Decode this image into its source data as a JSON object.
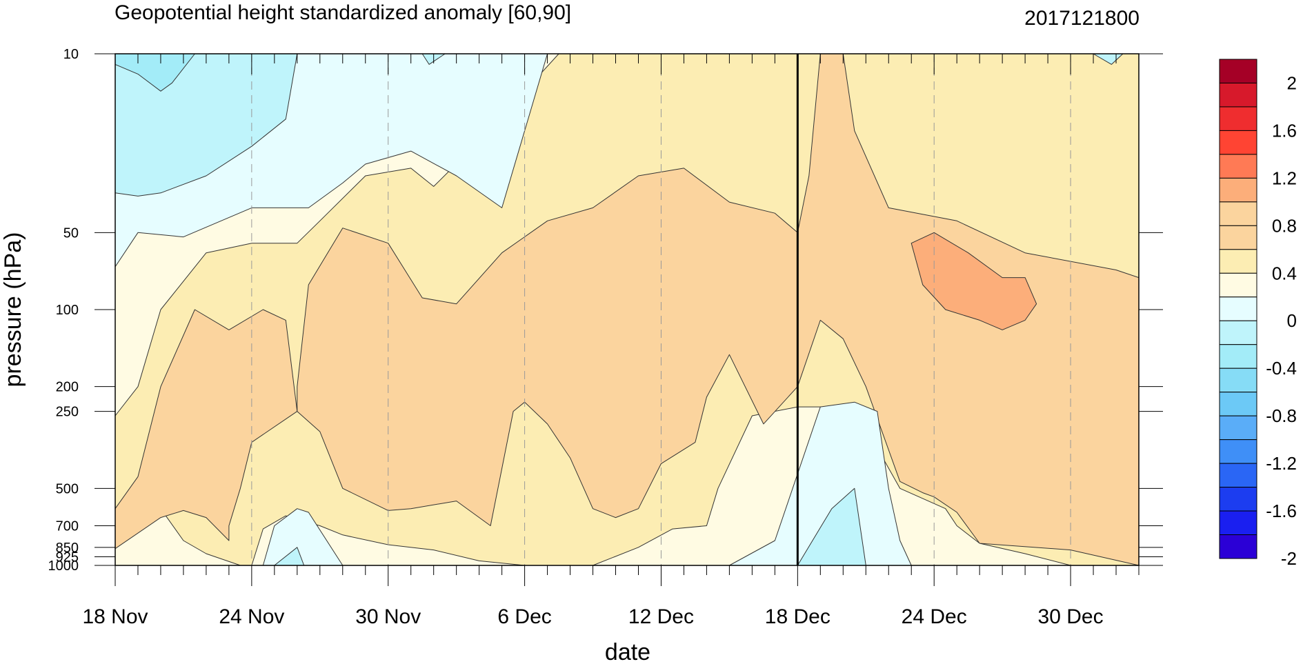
{
  "chart_data": {
    "type": "contour",
    "title": "Geopotential height standardized anomaly [60,90]",
    "date_label": "2017121800",
    "xlabel": "date",
    "ylabel": "pressure (hPa)",
    "x_ticks": [
      {
        "label": "18 Nov",
        "day": 0
      },
      {
        "label": "24 Nov",
        "day": 6
      },
      {
        "label": "30 Nov",
        "day": 12
      },
      {
        "label": "6 Dec",
        "day": 18
      },
      {
        "label": "12 Dec",
        "day": 24
      },
      {
        "label": "18 Dec",
        "day": 30
      },
      {
        "label": "24 Dec",
        "day": 36
      },
      {
        "label": "30 Dec",
        "day": 42
      }
    ],
    "x_range_days": [
      0,
      45
    ],
    "current_day": 30,
    "y_scale": "log",
    "y_range_hpa": [
      1000,
      10
    ],
    "y_ticks": [
      {
        "label": "10",
        "value": 10
      },
      {
        "label": "50",
        "value": 50
      },
      {
        "label": "100",
        "value": 100
      },
      {
        "label": "200",
        "value": 200
      },
      {
        "label": "250",
        "value": 250
      },
      {
        "label": "500",
        "value": 500
      },
      {
        "label": "700",
        "value": 700
      },
      {
        "label": "850",
        "value": 850
      },
      {
        "label": "925",
        "value": 925
      },
      {
        "label": "1000",
        "value": 1000
      }
    ],
    "colorbar": {
      "levels": [
        "2",
        "1.6",
        "1.2",
        "0.8",
        "0.4",
        "0",
        "-0.4",
        "-0.8",
        "-1.2",
        "-1.6",
        "-2"
      ],
      "colors": [
        "#a50026",
        "#d7192b",
        "#ef2d2f",
        "#ff4433",
        "#ff7a55",
        "#fcae7a",
        "#fbd49e",
        "#fbd49e",
        "#fcedb3",
        "#fffbe3",
        "#e6fdff",
        "#bff4fb",
        "#a3ecf8",
        "#86dcf6",
        "#6cc9f6",
        "#5aadf8",
        "#3f8ff7",
        "#2a66f5",
        "#1c3df0",
        "#1a1ff0",
        "#2b00d6"
      ]
    },
    "regions": [
      {
        "value": 0.0,
        "color": "#fffbe3",
        "points": [
          [
            0,
            10
          ],
          [
            45,
            10
          ],
          [
            45,
            1000
          ],
          [
            0,
            1000
          ]
        ]
      },
      {
        "value": 0.2,
        "color": "#fcedb3",
        "points": [
          [
            0,
            260
          ],
          [
            1,
            200
          ],
          [
            2,
            100
          ],
          [
            4,
            60
          ],
          [
            6,
            55
          ],
          [
            8,
            55
          ],
          [
            9,
            45
          ],
          [
            11,
            30
          ],
          [
            13,
            28
          ],
          [
            14,
            33
          ],
          [
            16,
            22
          ],
          [
            18,
            14
          ],
          [
            19.5,
            10
          ],
          [
            45,
            10
          ],
          [
            45,
            1000
          ],
          [
            43,
            1000
          ],
          [
            42,
            1000
          ],
          [
            40,
            900
          ],
          [
            38,
            820
          ],
          [
            37,
            700
          ],
          [
            36.5,
            600
          ],
          [
            34.5,
            500
          ],
          [
            33,
            290
          ],
          [
            31,
            240
          ],
          [
            30,
            240
          ],
          [
            28,
            260
          ],
          [
            26.5,
            500
          ],
          [
            26,
            700
          ],
          [
            24.5,
            720
          ],
          [
            23,
            850
          ],
          [
            21,
            1000
          ],
          [
            18,
            1000
          ],
          [
            16,
            960
          ],
          [
            14,
            870
          ],
          [
            12,
            830
          ],
          [
            10,
            760
          ],
          [
            9,
            700
          ],
          [
            7.5,
            640
          ],
          [
            6.5,
            720
          ],
          [
            6,
            1000
          ],
          [
            5.5,
            1000
          ],
          [
            4,
            900
          ],
          [
            3,
            800
          ],
          [
            2,
            600
          ],
          [
            1,
            590
          ],
          [
            0,
            600
          ]
        ]
      },
      {
        "value": 0.6,
        "color": "#fbd49e",
        "points": [
          [
            0,
            860
          ],
          [
            2,
            650
          ],
          [
            3,
            610
          ],
          [
            4,
            650
          ],
          [
            5,
            800
          ],
          [
            5,
            700
          ],
          [
            5.5,
            500
          ],
          [
            6,
            330
          ],
          [
            8,
            250
          ],
          [
            7.5,
            110
          ],
          [
            6.5,
            100
          ],
          [
            5,
            120
          ],
          [
            3.5,
            100
          ],
          [
            2,
            200
          ],
          [
            1,
            450
          ],
          [
            0,
            600
          ]
        ]
      },
      {
        "value": 0.6,
        "color": "#fbd49e",
        "points": [
          [
            8,
            200
          ],
          [
            8.5,
            80
          ],
          [
            10,
            48
          ],
          [
            12,
            55
          ],
          [
            13.5,
            90
          ],
          [
            15,
            95
          ],
          [
            17,
            60
          ],
          [
            19,
            45
          ],
          [
            21,
            40
          ],
          [
            23,
            30
          ],
          [
            25,
            28
          ],
          [
            27,
            38
          ],
          [
            29,
            42
          ],
          [
            30,
            50
          ],
          [
            30.5,
            30
          ],
          [
            31,
            10
          ],
          [
            32,
            10
          ],
          [
            32.5,
            20
          ],
          [
            34,
            40
          ],
          [
            37,
            45
          ],
          [
            40,
            60
          ],
          [
            44,
            70
          ],
          [
            45,
            75
          ],
          [
            45,
            1000
          ],
          [
            42,
            870
          ],
          [
            38,
            820
          ],
          [
            37,
            620
          ],
          [
            36,
            540
          ],
          [
            35.5,
            520
          ],
          [
            34.5,
            470
          ],
          [
            33,
            200
          ],
          [
            32,
            130
          ],
          [
            31,
            110
          ],
          [
            30,
            200
          ],
          [
            28.5,
            280
          ],
          [
            27,
            150
          ],
          [
            26,
            220
          ],
          [
            25.5,
            330
          ],
          [
            24,
            400
          ],
          [
            23,
            600
          ],
          [
            22,
            650
          ],
          [
            21,
            600
          ],
          [
            20,
            380
          ],
          [
            19,
            280
          ],
          [
            18,
            230
          ],
          [
            17.5,
            250
          ],
          [
            16.5,
            700
          ],
          [
            15,
            560
          ],
          [
            13,
            600
          ],
          [
            12,
            610
          ],
          [
            10,
            500
          ],
          [
            9,
            300
          ],
          [
            8,
            250
          ]
        ]
      },
      {
        "value": 1.0,
        "color": "#fcae7a",
        "points": [
          [
            35,
            55
          ],
          [
            36,
            50
          ],
          [
            37.5,
            60
          ],
          [
            39,
            75
          ],
          [
            40,
            75
          ],
          [
            40.5,
            95
          ],
          [
            40,
            110
          ],
          [
            39,
            120
          ],
          [
            38,
            110
          ],
          [
            36.5,
            100
          ],
          [
            35.5,
            80
          ]
        ]
      },
      {
        "value": -0.2,
        "color": "#e6fdff",
        "points": [
          [
            0,
            10
          ],
          [
            19,
            10
          ],
          [
            17,
            40
          ],
          [
            15,
            30
          ],
          [
            13,
            24
          ],
          [
            11,
            27
          ],
          [
            10,
            32
          ],
          [
            8.5,
            40
          ],
          [
            7,
            40
          ],
          [
            6,
            40
          ],
          [
            3,
            52
          ],
          [
            1,
            50
          ],
          [
            0,
            68
          ]
        ]
      },
      {
        "value": -0.2,
        "color": "#e6fdff",
        "points": [
          [
            6.5,
            1000
          ],
          [
            7,
            700
          ],
          [
            8,
            600
          ],
          [
            8.5,
            620
          ],
          [
            10,
            1000
          ]
        ]
      },
      {
        "value": -0.2,
        "color": "#e6fdff",
        "points": [
          [
            27,
            1000
          ],
          [
            29,
            800
          ],
          [
            31,
            240
          ],
          [
            32.5,
            230
          ],
          [
            33.5,
            250
          ],
          [
            34,
            500
          ],
          [
            34.5,
            800
          ],
          [
            35,
            1000
          ]
        ]
      },
      {
        "value": -0.6,
        "color": "#bff4fb",
        "points": [
          [
            0,
            10
          ],
          [
            8,
            10
          ],
          [
            7.5,
            18
          ],
          [
            6,
            23
          ],
          [
            4,
            30
          ],
          [
            2,
            35
          ],
          [
            1,
            36
          ],
          [
            0,
            35
          ]
        ]
      },
      {
        "value": -0.6,
        "color": "#bff4fb",
        "points": [
          [
            30,
            1000
          ],
          [
            31.5,
            600
          ],
          [
            32.5,
            500
          ],
          [
            33,
            1000
          ]
        ]
      },
      {
        "value": -0.6,
        "color": "#bff4fb",
        "points": [
          [
            7,
            1000
          ],
          [
            8,
            850
          ],
          [
            8.3,
            1000
          ]
        ]
      },
      {
        "value": -0.6,
        "color": "#bff4fb",
        "points": [
          [
            13.5,
            10
          ],
          [
            14.5,
            10
          ],
          [
            13.8,
            11
          ]
        ]
      },
      {
        "value": -0.6,
        "color": "#bff4fb",
        "points": [
          [
            43,
            10
          ],
          [
            44.3,
            10
          ],
          [
            43.8,
            11
          ]
        ]
      },
      {
        "value": -1.0,
        "color": "#a3ecf8",
        "points": [
          [
            0,
            10
          ],
          [
            3.5,
            10
          ],
          [
            2.5,
            13
          ],
          [
            2,
            14
          ],
          [
            1,
            12
          ],
          [
            0,
            11
          ]
        ]
      }
    ]
  }
}
